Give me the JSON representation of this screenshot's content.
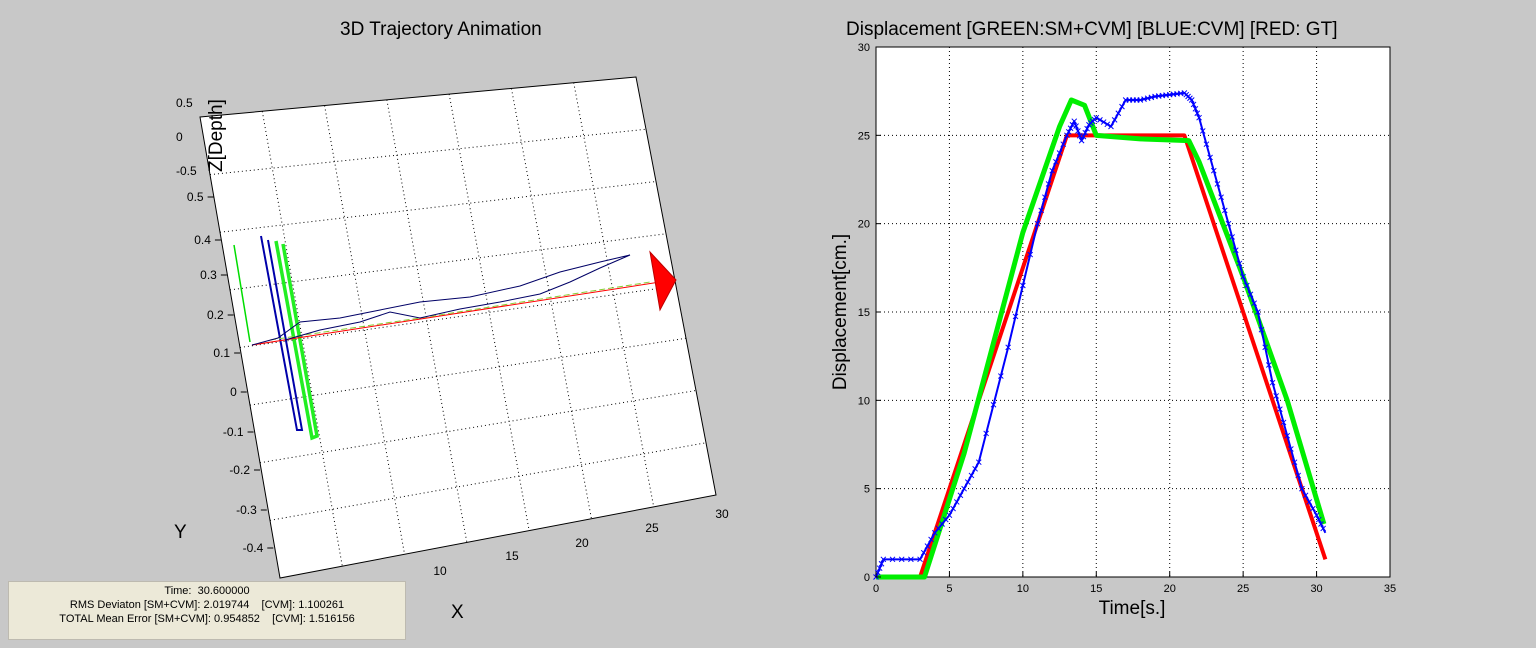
{
  "chart_data": [
    {
      "type": "line",
      "title": "3D Trajectory Animation",
      "xlabel": "X",
      "ylabel": "Y",
      "zlabel": "Z[Depth]",
      "x_ticks": [
        "10",
        "15",
        "20",
        "25",
        "30"
      ],
      "y_ticks": [
        "0.5",
        "0.4",
        "0.3",
        "0.2",
        "0.1",
        "0",
        "-0.1",
        "-0.2",
        "-0.3",
        "-0.4"
      ],
      "z_ticks": [
        "0.5",
        "0",
        "-0.5"
      ],
      "grid": true,
      "colors": {
        "sm_cvm": "#00ee00",
        "cvm": "#0000aa",
        "gt": "#ff0000"
      }
    },
    {
      "type": "line",
      "title": "Displacement [GREEN:SM+CVM] [BLUE:CVM] [RED: GT]",
      "xlabel": "Time[s.]",
      "ylabel": "Displacement[cm.]",
      "xlim": [
        0,
        35
      ],
      "ylim": [
        0,
        30
      ],
      "x_ticks": [
        0,
        5,
        10,
        15,
        20,
        25,
        30,
        35
      ],
      "y_ticks": [
        0,
        5,
        10,
        15,
        20,
        25,
        30
      ],
      "grid": true,
      "series": [
        {
          "name": "GT",
          "color": "#ff0000",
          "x": [
            0,
            3,
            13,
            21,
            30.6
          ],
          "y": [
            0,
            0,
            25,
            25,
            1
          ]
        },
        {
          "name": "SM+CVM",
          "color": "#00ee00",
          "x": [
            0,
            3.3,
            6,
            10,
            12.5,
            13.3,
            14.2,
            15,
            18,
            21.3,
            22,
            25,
            28,
            30.5
          ],
          "y": [
            0,
            0,
            7,
            19.5,
            25.5,
            27,
            26.7,
            25,
            24.8,
            24.7,
            23.5,
            17,
            10,
            3
          ]
        },
        {
          "name": "CVM",
          "color": "#0000ff",
          "x": [
            0,
            0.5,
            3,
            4,
            5,
            6,
            7,
            9,
            11,
            12,
            13,
            13.5,
            14,
            14.5,
            15,
            16,
            17,
            18,
            19,
            20,
            21,
            21.5,
            22,
            23,
            24,
            25,
            26,
            27,
            28,
            29,
            30,
            30.6
          ],
          "y": [
            0,
            1,
            1,
            2.5,
            3.5,
            5,
            6.5,
            13,
            20,
            23,
            25,
            25.8,
            24.7,
            25.6,
            26,
            25.5,
            27,
            27,
            27.2,
            27.3,
            27.4,
            27,
            26,
            23,
            20,
            17,
            15,
            11,
            8,
            5,
            3.5,
            2.5
          ]
        }
      ]
    }
  ],
  "info": {
    "time": "Time:  30.600000",
    "rms": "RMS Deviaton [SM+CVM]: 2.019744    [CVM]: 1.100261",
    "total": "TOTAL Mean Error [SM+CVM]: 0.954852    [CVM]: 1.516156"
  }
}
